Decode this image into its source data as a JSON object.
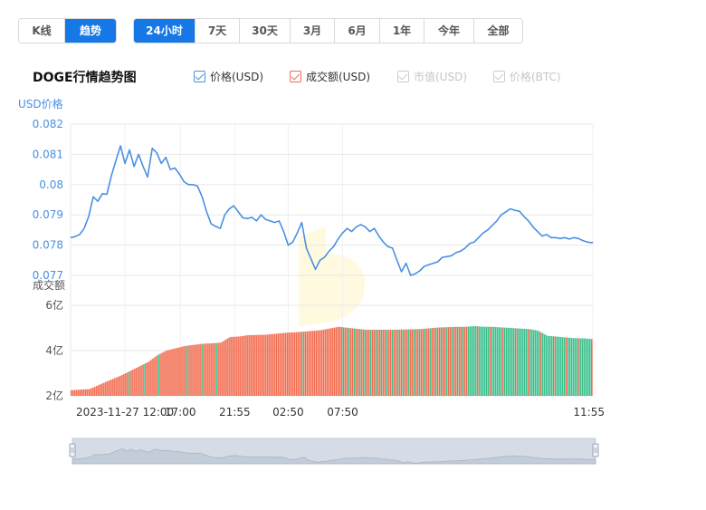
{
  "toolbar": {
    "type_tabs": [
      {
        "label": "K线",
        "active": false
      },
      {
        "label": "趋势",
        "active": true
      }
    ],
    "range_tabs": [
      {
        "label": "24小时",
        "active": true
      },
      {
        "label": "7天",
        "active": false
      },
      {
        "label": "30天",
        "active": false
      },
      {
        "label": "3月",
        "active": false
      },
      {
        "label": "6月",
        "active": false
      },
      {
        "label": "1年",
        "active": false
      },
      {
        "label": "今年",
        "active": false
      },
      {
        "label": "全部",
        "active": false
      }
    ]
  },
  "chart_title": "DOGE行情趋势图",
  "legend": [
    {
      "label": "价格(USD)",
      "checked": true,
      "enabled": true,
      "color": "#4a90e2"
    },
    {
      "label": "成交额(USD)",
      "checked": true,
      "enabled": true,
      "color": "#f26d50"
    },
    {
      "label": "市值(USD)",
      "checked": true,
      "enabled": false,
      "color": "#cccccc"
    },
    {
      "label": "价格(BTC)",
      "checked": true,
      "enabled": false,
      "color": "#cccccc"
    }
  ],
  "colors": {
    "accent": "#1677e6",
    "price_line": "#4a90e2",
    "volume_up": "#f26d50",
    "volume_down": "#3cc08e",
    "axis_label_blue": "#4a90e2",
    "grid": "#e8e8e8",
    "navigator_fill": "#d5dce6"
  },
  "chart_data": [
    {
      "type": "line",
      "ylabel": "USD价格",
      "ylim": [
        0.077,
        0.082
      ],
      "yticks": [
        "0.082",
        "0.081",
        "0.08",
        "0.079",
        "0.078",
        "0.077"
      ],
      "grid": true,
      "series": [
        {
          "name": "价格(USD)",
          "x": [
            0,
            5,
            10,
            15,
            20,
            25,
            30,
            35,
            40,
            45,
            50,
            55,
            60,
            65,
            70,
            75,
            80,
            85,
            90,
            95,
            100,
            105,
            110,
            115,
            120,
            125,
            130,
            135,
            140,
            145,
            150,
            155,
            160,
            165,
            170,
            175,
            180,
            185,
            190,
            195,
            200,
            205,
            210,
            215,
            220,
            225,
            230,
            235,
            240,
            245,
            250,
            255,
            260,
            265,
            270,
            275,
            280,
            285,
            290,
            295,
            300,
            305,
            310,
            315,
            320,
            325,
            330,
            335,
            340,
            345,
            350,
            355,
            360,
            365,
            370,
            375,
            380,
            385,
            390,
            395,
            400,
            405,
            410,
            415,
            420,
            425,
            430,
            435,
            440,
            445,
            450,
            455,
            460,
            465,
            470,
            475,
            480,
            485,
            490,
            495,
            500,
            505,
            510,
            515,
            520,
            525,
            530,
            535,
            540,
            545,
            550,
            555,
            560,
            565,
            570,
            575,
            576
          ],
          "values": [
            0.07825,
            0.07828,
            0.07835,
            0.07855,
            0.07895,
            0.0796,
            0.07945,
            0.0797,
            0.07968,
            0.0803,
            0.0808,
            0.08128,
            0.0807,
            0.08115,
            0.0806,
            0.081,
            0.0806,
            0.08025,
            0.0812,
            0.08105,
            0.0807,
            0.0809,
            0.0805,
            0.08055,
            0.08035,
            0.0801,
            0.08,
            0.08,
            0.07995,
            0.0796,
            0.0791,
            0.0787,
            0.07862,
            0.07855,
            0.079,
            0.0792,
            0.0793,
            0.0791,
            0.0789,
            0.07888,
            0.07892,
            0.0788,
            0.079,
            0.07885,
            0.0788,
            0.07875,
            0.0788,
            0.07845,
            0.078,
            0.0781,
            0.0784,
            0.07875,
            0.0779,
            0.07755,
            0.0772,
            0.0775,
            0.0776,
            0.0778,
            0.07795,
            0.0782,
            0.0784,
            0.07855,
            0.07845,
            0.0786,
            0.07868,
            0.0786,
            0.07845,
            0.07855,
            0.0783,
            0.0781,
            0.07795,
            0.0779,
            0.0775,
            0.07712,
            0.0774,
            0.077,
            0.07705,
            0.07715,
            0.0773,
            0.07735,
            0.0774,
            0.07745,
            0.0776,
            0.07762,
            0.07765,
            0.07775,
            0.0778,
            0.0779,
            0.07805,
            0.0781,
            0.07825,
            0.0784,
            0.0785,
            0.07865,
            0.0788,
            0.079,
            0.0791,
            0.0792,
            0.07915,
            0.07912,
            0.07895,
            0.0788,
            0.0786,
            0.07845,
            0.0783,
            0.07835,
            0.07825,
            0.07825,
            0.07822,
            0.07825,
            0.0782,
            0.07825,
            0.07822,
            0.07815,
            0.0781,
            0.07808,
            0.0781
          ]
        }
      ]
    },
    {
      "type": "bar",
      "ylabel": "成交额",
      "ylim": [
        200000000,
        600000000
      ],
      "yticks": [
        "6亿",
        "4亿",
        "2亿"
      ],
      "xticks": [
        "2023-11-27 12:00",
        "17:00",
        "21:55",
        "02:50",
        "07:50",
        "11:55"
      ],
      "series": [
        {
          "name": "成交额(USD)",
          "x": [
            0,
            20,
            40,
            55,
            65,
            75,
            85,
            95,
            105,
            115,
            125,
            135,
            145,
            155,
            165,
            175,
            185,
            195,
            215,
            235,
            255,
            275,
            295,
            325,
            355,
            385,
            405,
            425,
            435,
            445,
            455,
            465,
            475,
            485,
            495,
            505,
            515,
            525,
            535,
            545,
            555,
            565,
            576
          ],
          "values": [
            225000000,
            230000000,
            265000000,
            290000000,
            310000000,
            330000000,
            350000000,
            380000000,
            400000000,
            410000000,
            420000000,
            425000000,
            430000000,
            432000000,
            435000000,
            460000000,
            462000000,
            468000000,
            470000000,
            478000000,
            483000000,
            490000000,
            505000000,
            492000000,
            492000000,
            495000000,
            502000000,
            505000000,
            505000000,
            508000000,
            505000000,
            505000000,
            502000000,
            500000000,
            497000000,
            495000000,
            488000000,
            465000000,
            462000000,
            458000000,
            455000000,
            454000000,
            450000000
          ]
        }
      ]
    }
  ]
}
